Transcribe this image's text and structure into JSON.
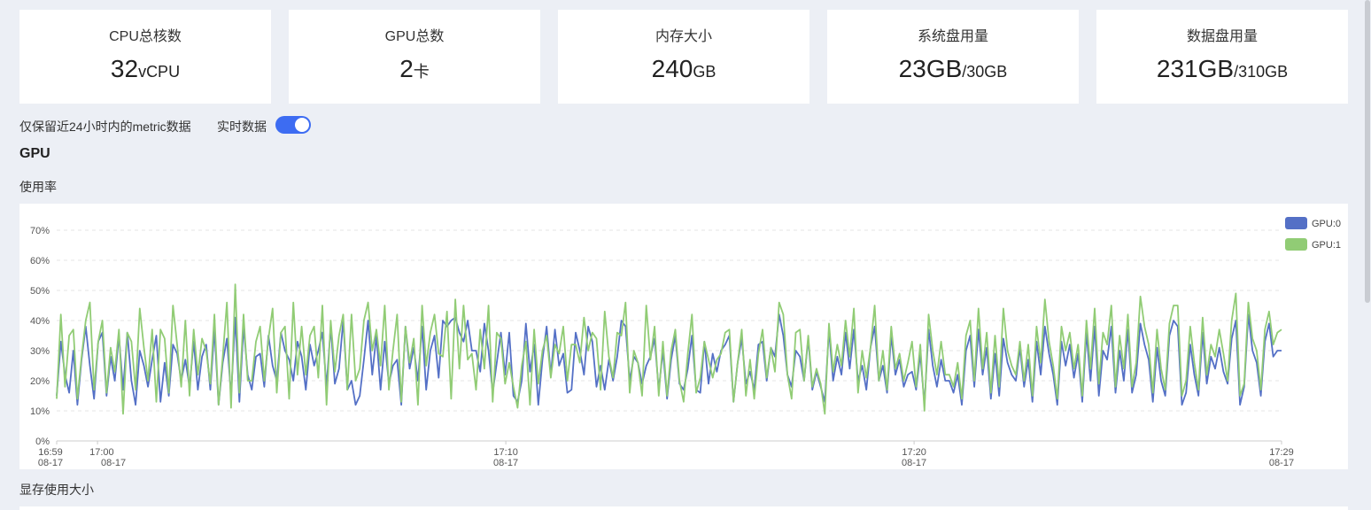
{
  "stats": [
    {
      "label": "CPU总核数",
      "value": "32",
      "unit": "vCPU",
      "suffix": ""
    },
    {
      "label": "GPU总数",
      "value": "2",
      "unit": "卡",
      "suffix": ""
    },
    {
      "label": "内存大小",
      "value": "240",
      "unit": "GB",
      "suffix": ""
    },
    {
      "label": "系统盘用量",
      "value": "23GB",
      "unit": "/30GB",
      "suffix": ""
    },
    {
      "label": "数据盘用量",
      "value": "231GB",
      "unit": "/310GB",
      "suffix": ""
    }
  ],
  "retention_note": "仅保留近24小时内的metric数据",
  "realtime": {
    "label": "实时数据",
    "enabled": true
  },
  "gpu_section": {
    "title": "GPU",
    "usage_title": "使用率",
    "memory_title": "显存使用大小"
  },
  "chart_data": {
    "type": "line",
    "title": "使用率",
    "xlabel": "",
    "ylabel": "",
    "ylim": [
      0,
      70
    ],
    "y_ticks": [
      "0%",
      "10%",
      "20%",
      "30%",
      "40%",
      "50%",
      "60%",
      "70%"
    ],
    "x_ticks": [
      {
        "time": "16:59",
        "date": "08-17"
      },
      {
        "time": "17:00",
        "date": "08-17"
      },
      {
        "time": "17:10",
        "date": "08-17"
      },
      {
        "time": "17:20",
        "date": "08-17"
      },
      {
        "time": "17:29",
        "date": "08-17"
      }
    ],
    "x_range_minutes": [
      0,
      30
    ],
    "legend": [
      {
        "name": "GPU:0",
        "color": "#5470c6"
      },
      {
        "name": "GPU:1",
        "color": "#91cc75"
      }
    ],
    "series": [
      {
        "name": "GPU:0",
        "color": "#5470c6",
        "values": [
          15,
          33,
          22,
          16,
          30,
          12,
          27,
          38,
          25,
          14,
          33,
          36,
          15,
          28,
          20,
          35,
          17,
          36,
          20,
          12,
          30,
          25,
          18,
          27,
          35,
          13,
          26,
          15,
          32,
          29,
          20,
          27,
          18,
          33,
          17,
          28,
          32,
          17,
          37,
          12,
          26,
          34,
          15,
          41,
          13,
          38,
          22,
          17,
          28,
          29,
          18,
          35,
          25,
          20,
          36,
          30,
          27,
          20,
          33,
          28,
          17,
          32,
          25,
          30,
          36,
          18,
          38,
          19,
          24,
          40,
          17,
          20,
          12,
          15,
          27,
          40,
          22,
          35,
          17,
          33,
          19,
          25,
          27,
          12,
          38,
          24,
          31,
          20,
          38,
          17,
          30,
          35,
          21,
          40,
          38,
          40,
          41,
          36,
          33,
          40,
          30,
          30,
          23,
          39,
          30,
          16,
          26,
          36,
          22,
          36,
          15,
          13,
          20,
          39,
          23,
          32,
          12,
          27,
          38,
          22,
          37,
          25,
          29,
          16,
          17,
          36,
          30,
          22,
          38,
          33,
          18,
          25,
          17,
          27,
          20,
          28,
          40,
          38,
          20,
          28,
          26,
          19,
          25,
          28,
          34,
          17,
          30,
          14,
          27,
          35,
          19,
          17,
          24,
          35,
          17,
          16,
          33,
          19,
          29,
          23,
          30,
          32,
          35,
          13,
          26,
          34,
          19,
          23,
          17,
          32,
          33,
          20,
          31,
          28,
          42,
          35,
          22,
          18,
          30,
          28,
          20,
          34,
          17,
          23,
          18,
          13,
          37,
          20,
          28,
          22,
          36,
          24,
          37,
          20,
          25,
          17,
          31,
          38,
          20,
          25,
          16,
          35,
          22,
          27,
          18,
          22,
          23,
          17,
          29,
          12,
          37,
          25,
          18,
          27,
          20,
          20,
          16,
          22,
          12,
          30,
          35,
          18,
          37,
          22,
          31,
          14,
          29,
          15,
          34,
          26,
          22,
          20,
          31,
          18,
          27,
          13,
          33,
          22,
          38,
          29,
          22,
          12,
          33,
          25,
          32,
          21,
          29,
          13,
          36,
          20,
          38,
          15,
          30,
          27,
          38,
          16,
          30,
          20,
          37,
          16,
          22,
          39,
          32,
          27,
          13,
          31,
          20,
          15,
          35,
          40,
          38,
          12,
          16,
          32,
          22,
          15,
          36,
          19,
          28,
          24,
          31,
          23,
          19,
          34,
          40,
          12,
          18,
          42,
          30,
          26,
          15,
          33,
          39,
          28,
          30,
          30
        ]
      },
      {
        "name": "GPU:1",
        "color": "#91cc75",
        "values": [
          14,
          42,
          18,
          35,
          37,
          14,
          28,
          40,
          46,
          17,
          33,
          40,
          16,
          31,
          23,
          37,
          9,
          36,
          33,
          17,
          44,
          31,
          20,
          37,
          13,
          37,
          34,
          16,
          45,
          32,
          18,
          40,
          15,
          37,
          22,
          34,
          30,
          19,
          42,
          12,
          28,
          46,
          11,
          52,
          16,
          42,
          20,
          20,
          33,
          38,
          20,
          34,
          44,
          16,
          36,
          38,
          14,
          46,
          22,
          38,
          22,
          35,
          38,
          21,
          45,
          12,
          40,
          23,
          35,
          42,
          17,
          42,
          20,
          24,
          40,
          46,
          30,
          37,
          25,
          45,
          17,
          30,
          42,
          13,
          38,
          26,
          34,
          12,
          45,
          25,
          36,
          42,
          29,
          28,
          43,
          14,
          47,
          24,
          45,
          27,
          29,
          17,
          37,
          24,
          45,
          13,
          36,
          34,
          19,
          26,
          18,
          11,
          25,
          33,
          12,
          37,
          19,
          30,
          35,
          21,
          32,
          29,
          38,
          20,
          32,
          32,
          26,
          41,
          30,
          36,
          34,
          17,
          43,
          28,
          21,
          36,
          35,
          46,
          16,
          30,
          26,
          15,
          45,
          27,
          38,
          15,
          33,
          15,
          30,
          37,
          20,
          13,
          29,
          42,
          16,
          21,
          33,
          27,
          21,
          27,
          29,
          36,
          37,
          13,
          26,
          37,
          15,
          27,
          14,
          29,
          37,
          21,
          31,
          23,
          46,
          42,
          22,
          14,
          36,
          37,
          20,
          35,
          18,
          24,
          19,
          9,
          39,
          23,
          32,
          25,
          40,
          28,
          44,
          16,
          30,
          21,
          31,
          45,
          20,
          30,
          17,
          38,
          24,
          29,
          20,
          26,
          33,
          18,
          32,
          10,
          42,
          30,
          22,
          33,
          22,
          22,
          18,
          26,
          14,
          35,
          40,
          20,
          44,
          24,
          36,
          16,
          35,
          18,
          44,
          30,
          25,
          22,
          33,
          20,
          32,
          15,
          38,
          26,
          47,
          33,
          25,
          14,
          38,
          30,
          36,
          24,
          32,
          15,
          40,
          24,
          44,
          19,
          36,
          32,
          45,
          18,
          35,
          24,
          42,
          18,
          26,
          48,
          38,
          32,
          16,
          37,
          24,
          17,
          39,
          45,
          45,
          15,
          20,
          38,
          26,
          17,
          41,
          22,
          32,
          28,
          37,
          29,
          20,
          40,
          49,
          15,
          19,
          46,
          34,
          30,
          17,
          37,
          43,
          32,
          36,
          37
        ]
      }
    ]
  }
}
